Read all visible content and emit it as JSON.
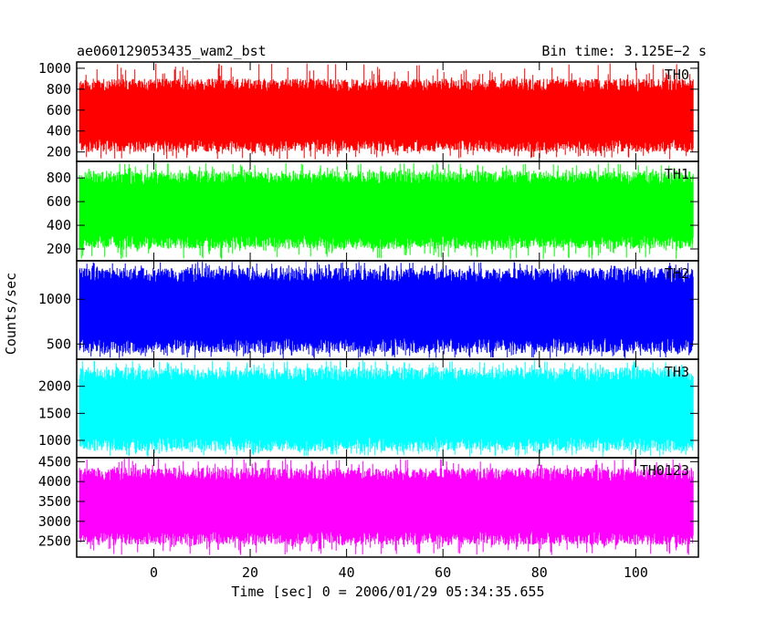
{
  "header": {
    "title": "ae060129053435_wam2_bst",
    "bin_time": "Bin time: 3.125E−2 s"
  },
  "chart_data": {
    "type": "line",
    "title": "ae060129053435_wam2_bst",
    "ylabel": "Counts/sec",
    "xlabel": "Time [sec] 0 = 2006/01/29 05:34:35.655",
    "x_range": [
      -16,
      113
    ],
    "data_x_range": [
      -15.4,
      111.9
    ],
    "xticks": [
      0,
      20,
      40,
      60,
      80,
      100
    ],
    "xtick_labels": [
      "0",
      "20",
      "40",
      "60",
      "80",
      "100"
    ],
    "grid": false,
    "series": [
      {
        "name": "TH0",
        "color": "#ff0000",
        "ylim": [
          110,
          1060
        ],
        "yticks": [
          200,
          400,
          600,
          800,
          1000
        ],
        "mean": 520,
        "typical_low": 200,
        "typical_high": 900,
        "min": 130,
        "max": 1050
      },
      {
        "name": "TH1",
        "color": "#00ff00",
        "ylim": [
          100,
          940
        ],
        "yticks": [
          200,
          400,
          600,
          800
        ],
        "mean": 500,
        "typical_low": 200,
        "typical_high": 860,
        "min": 110,
        "max": 930
      },
      {
        "name": "TH2",
        "color": "#0000ff",
        "ylim": [
          330,
          1430
        ],
        "yticks": [
          500,
          1000
        ],
        "mean": 850,
        "typical_low": 400,
        "typical_high": 1350,
        "min": 340,
        "max": 1420
      },
      {
        "name": "TH3",
        "color": "#00ffff",
        "ylim": [
          680,
          2500
        ],
        "yticks": [
          1000,
          1500,
          2000
        ],
        "mean": 1550,
        "typical_low": 800,
        "typical_high": 2350,
        "min": 700,
        "max": 2480
      },
      {
        "name": "TH0123",
        "color": "#ff00ff",
        "ylim": [
          2100,
          4600
        ],
        "yticks": [
          2500,
          3000,
          3500,
          4000,
          4500
        ],
        "mean": 3350,
        "typical_low": 2400,
        "typical_high": 4350,
        "min": 2150,
        "max": 4580
      }
    ]
  }
}
